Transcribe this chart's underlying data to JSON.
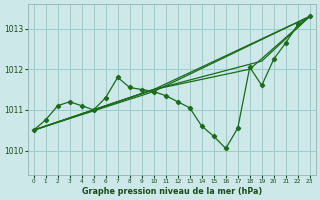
{
  "background_color": "#cce8e8",
  "grid_color": "#99cccc",
  "line_color": "#1a6b1a",
  "xlabel": "Graphe pression niveau de la mer (hPa)",
  "xlim": [
    -0.5,
    23.5
  ],
  "ylim": [
    1009.4,
    1013.6
  ],
  "yticks": [
    1010,
    1011,
    1012,
    1013
  ],
  "xticks": [
    0,
    1,
    2,
    3,
    4,
    5,
    6,
    7,
    8,
    9,
    10,
    11,
    12,
    13,
    14,
    15,
    16,
    17,
    18,
    19,
    20,
    21,
    22,
    23
  ],
  "series": [
    {
      "x": [
        0,
        1,
        2,
        3,
        4,
        5,
        6,
        7,
        8,
        9,
        10,
        11,
        12,
        13,
        14,
        15,
        16,
        17,
        18,
        19,
        20,
        21,
        22,
        23
      ],
      "y": [
        1010.5,
        1010.75,
        1011.1,
        1011.2,
        1011.1,
        1011.0,
        1011.3,
        1011.8,
        1011.55,
        1011.5,
        1011.45,
        1011.35,
        1011.2,
        1011.05,
        1010.6,
        1010.35,
        1010.05,
        1010.55,
        1012.05,
        1011.6,
        1012.25,
        1012.65,
        1013.1,
        1013.3
      ],
      "marker": true
    },
    {
      "x": [
        0,
        10,
        23
      ],
      "y": [
        1010.5,
        1011.45,
        1013.3
      ],
      "marker": false
    },
    {
      "x": [
        0,
        10,
        19,
        23
      ],
      "y": [
        1010.5,
        1011.5,
        1012.2,
        1013.3
      ],
      "marker": false
    },
    {
      "x": [
        0,
        10,
        18,
        23
      ],
      "y": [
        1010.5,
        1011.5,
        1012.0,
        1013.3
      ],
      "marker": false
    },
    {
      "x": [
        0,
        10,
        23
      ],
      "y": [
        1010.5,
        1011.5,
        1013.3
      ],
      "marker": false
    }
  ]
}
